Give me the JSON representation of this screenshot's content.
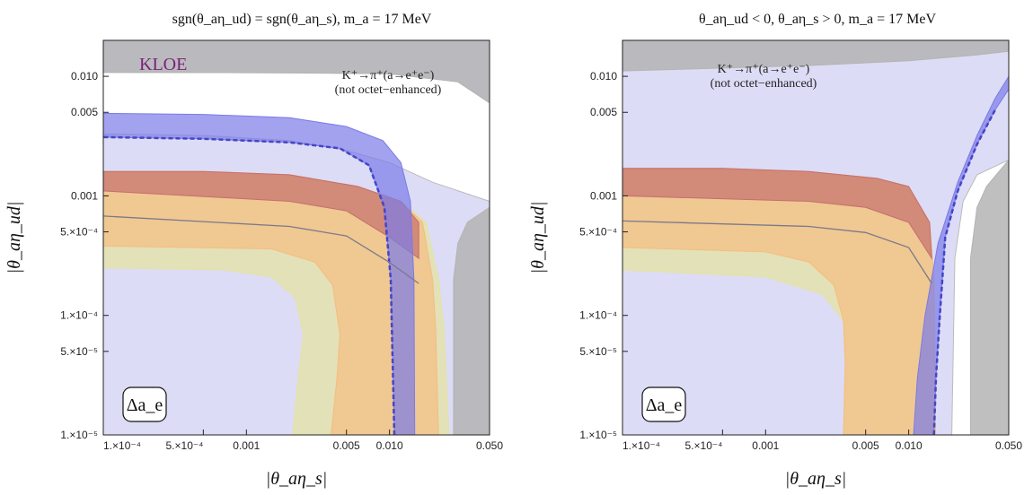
{
  "chart_data": [
    {
      "type": "area",
      "title": "sgn(θ_aη_ud) = sgn(θ_aη_s), m_a = 17 MeV",
      "xlabel": "|θ_aη_s|",
      "ylabel": "|θ_aη_ud|",
      "xscale": "log",
      "yscale": "log",
      "xlim": [
        0.0001,
        0.05
      ],
      "ylim": [
        1e-05,
        0.02
      ],
      "grid": false,
      "x_ticks": [
        {
          "value": 0.0001,
          "label": "1.×10⁻⁴"
        },
        {
          "value": 0.0005,
          "label": "5.×10⁻⁴"
        },
        {
          "value": 0.001,
          "label": "0.001"
        },
        {
          "value": 0.005,
          "label": "0.005"
        },
        {
          "value": 0.01,
          "label": "0.010"
        },
        {
          "value": 0.05,
          "label": "0.050"
        }
      ],
      "y_ticks": [
        {
          "value": 1e-05,
          "label": "1.×10⁻⁵"
        },
        {
          "value": 5e-05,
          "label": "5.×10⁻⁵"
        },
        {
          "value": 0.0001,
          "label": "1.×10⁻⁴"
        },
        {
          "value": 0.0005,
          "label": "5.×10⁻⁴"
        },
        {
          "value": 0.001,
          "label": "0.001"
        },
        {
          "value": 0.005,
          "label": "0.005"
        },
        {
          "value": 0.01,
          "label": "0.010"
        }
      ],
      "annotations": {
        "kloe": "KLOE",
        "kaon_line1": "K⁺→π⁺(a→e⁺e⁻)",
        "kaon_line2": "(not octet−enhanced)",
        "box_label": "Δa_e"
      },
      "bands": [
        {
          "id": "background",
          "color": "#dcdcf6",
          "points": []
        },
        {
          "id": "white",
          "color": "#ffffff",
          "points": [
            [
              0.0001,
              0.0033
            ],
            [
              0.0005,
              0.0032
            ],
            [
              0.002,
              0.0029
            ],
            [
              0.005,
              0.0024
            ],
            [
              0.01,
              0.0019
            ],
            [
              0.02,
              0.0013
            ],
            [
              0.05,
              0.0009
            ],
            [
              0.05,
              0.006
            ],
            [
              0.03,
              0.009
            ],
            [
              0.01,
              0.0105
            ],
            [
              0.002,
              0.0107
            ],
            [
              0.0001,
              0.0108
            ]
          ]
        },
        {
          "id": "gray-top",
          "color": "#b4b4b4",
          "points": [
            [
              0.0001,
              0.02
            ],
            [
              0.05,
              0.02
            ],
            [
              0.05,
              0.006
            ],
            [
              0.03,
              0.009
            ],
            [
              0.01,
              0.0105
            ],
            [
              0.002,
              0.0107
            ],
            [
              0.0001,
              0.0108
            ]
          ]
        },
        {
          "id": "gray-right",
          "color": "#b4b4b4",
          "points": [
            [
              0.028,
              1e-05
            ],
            [
              0.028,
              0.0002
            ],
            [
              0.03,
              0.0004
            ],
            [
              0.035,
              0.0006
            ],
            [
              0.05,
              0.0008
            ],
            [
              0.05,
              1e-05
            ]
          ]
        },
        {
          "id": "yellow",
          "color": "#e6e39e",
          "points": [
            [
              0.0001,
              0.0016
            ],
            [
              0.0005,
              0.0016
            ],
            [
              0.002,
              0.0015
            ],
            [
              0.006,
              0.0012
            ],
            [
              0.012,
              0.0009
            ],
            [
              0.018,
              0.0006
            ],
            [
              0.022,
              0.0002
            ],
            [
              0.024,
              8e-05
            ],
            [
              0.026,
              1e-05
            ],
            [
              0.0021,
              1e-05
            ],
            [
              0.0023,
              3e-05
            ],
            [
              0.0025,
              7e-05
            ],
            [
              0.0022,
              0.00014
            ],
            [
              0.0015,
              0.00021
            ],
            [
              0.0007,
              0.00024
            ],
            [
              0.0001,
              0.00025
            ]
          ]
        },
        {
          "id": "orange",
          "color": "#f5bd80",
          "points": [
            [
              0.0001,
              0.0016
            ],
            [
              0.0005,
              0.0016
            ],
            [
              0.002,
              0.0015
            ],
            [
              0.006,
              0.0012
            ],
            [
              0.012,
              0.0009
            ],
            [
              0.017,
              0.0006
            ],
            [
              0.02,
              0.0002
            ],
            [
              0.021,
              8e-05
            ],
            [
              0.022,
              1e-05
            ],
            [
              0.0039,
              1e-05
            ],
            [
              0.0043,
              3e-05
            ],
            [
              0.0045,
              7e-05
            ],
            [
              0.004,
              0.00018
            ],
            [
              0.003,
              0.00028
            ],
            [
              0.0015,
              0.00036
            ],
            [
              0.0001,
              0.00038
            ]
          ]
        },
        {
          "id": "red",
          "color": "#c46f6f",
          "points": [
            [
              0.0001,
              0.0016
            ],
            [
              0.0005,
              0.0016
            ],
            [
              0.002,
              0.0015
            ],
            [
              0.006,
              0.0012
            ],
            [
              0.012,
              0.0009
            ],
            [
              0.016,
              0.0006
            ],
            [
              0.016,
              0.0003
            ],
            [
              0.01,
              0.00045
            ],
            [
              0.005,
              0.00075
            ],
            [
              0.002,
              0.0009
            ],
            [
              0.0001,
              0.0011
            ]
          ]
        },
        {
          "id": "blue",
          "color": "#7a7ae8",
          "points": [
            [
              0.0001,
              0.0049
            ],
            [
              0.0005,
              0.0048
            ],
            [
              0.002,
              0.0045
            ],
            [
              0.005,
              0.0038
            ],
            [
              0.009,
              0.0029
            ],
            [
              0.012,
              0.0019
            ],
            [
              0.014,
              0.0009
            ],
            [
              0.0148,
              0.0002
            ],
            [
              0.015,
              1e-05
            ],
            [
              0.0108,
              1e-05
            ],
            [
              0.0102,
              0.0002
            ],
            [
              0.0092,
              0.0008
            ],
            [
              0.0072,
              0.0018
            ],
            [
              0.0045,
              0.0025
            ],
            [
              0.002,
              0.0028
            ],
            [
              0.0005,
              0.003
            ],
            [
              0.0001,
              0.0031
            ]
          ]
        }
      ]
    },
    {
      "type": "area",
      "title": "θ_aη_ud < 0, θ_aη_s > 0, m_a = 17 MeV",
      "xlabel": "|θ_aη_s|",
      "ylabel": "|θ_aη_ud|",
      "xscale": "log",
      "yscale": "log",
      "xlim": [
        0.0001,
        0.05
      ],
      "ylim": [
        1e-05,
        0.02
      ],
      "grid": false,
      "x_ticks": [
        {
          "value": 0.0001,
          "label": "1.×10⁻⁴"
        },
        {
          "value": 0.0005,
          "label": "5.×10⁻⁴"
        },
        {
          "value": 0.001,
          "label": "0.001"
        },
        {
          "value": 0.005,
          "label": "0.005"
        },
        {
          "value": 0.01,
          "label": "0.010"
        },
        {
          "value": 0.05,
          "label": "0.050"
        }
      ],
      "y_ticks": [
        {
          "value": 1e-05,
          "label": "1.×10⁻⁵"
        },
        {
          "value": 5e-05,
          "label": "5.×10⁻⁵"
        },
        {
          "value": 0.0001,
          "label": "1.×10⁻⁴"
        },
        {
          "value": 0.0005,
          "label": "5.×10⁻⁴"
        },
        {
          "value": 0.001,
          "label": "0.001"
        },
        {
          "value": 0.005,
          "label": "0.005"
        },
        {
          "value": 0.01,
          "label": "0.010"
        }
      ],
      "annotations": {
        "kloe": "",
        "kaon_line1": "K⁺→π⁺(a→e⁺e⁻)",
        "kaon_line2": "(not octet−enhanced)",
        "box_label": "Δa_e"
      },
      "bands": [
        {
          "id": "background",
          "color": "#dcdcf6",
          "points": []
        },
        {
          "id": "gray-right",
          "color": "#b4b4b4",
          "points": [
            [
              0.027,
              1e-05
            ],
            [
              0.027,
              0.0003
            ],
            [
              0.03,
              0.0008
            ],
            [
              0.035,
              0.0012
            ],
            [
              0.05,
              0.002
            ],
            [
              0.05,
              1e-05
            ]
          ]
        },
        {
          "id": "white",
          "color": "#ffffff",
          "points": [
            [
              0.02,
              1e-05
            ],
            [
              0.021,
              0.0003
            ],
            [
              0.024,
              0.0009
            ],
            [
              0.03,
              0.0015
            ],
            [
              0.05,
              0.002
            ],
            [
              0.05,
              1e-05
            ]
          ]
        },
        {
          "id": "gray-right2",
          "color": "#b4b4b4",
          "points": [
            [
              0.027,
              1e-05
            ],
            [
              0.027,
              0.0003
            ],
            [
              0.03,
              0.0008
            ],
            [
              0.035,
              0.0012
            ],
            [
              0.05,
              0.002
            ],
            [
              0.05,
              1e-05
            ]
          ]
        },
        {
          "id": "gray-top",
          "color": "#b4b4b4",
          "points": [
            [
              0.0001,
              0.02
            ],
            [
              0.05,
              0.02
            ],
            [
              0.05,
              0.0162
            ],
            [
              0.03,
              0.0151
            ],
            [
              0.01,
              0.0135
            ],
            [
              0.002,
              0.0123
            ],
            [
              0.0001,
              0.0111
            ]
          ]
        },
        {
          "id": "yellow",
          "color": "#e6e39e",
          "points": [
            [
              0.0001,
              0.0017
            ],
            [
              0.0005,
              0.0017
            ],
            [
              0.002,
              0.0016
            ],
            [
              0.006,
              0.0014
            ],
            [
              0.01,
              0.0012
            ],
            [
              0.014,
              0.0006
            ],
            [
              0.015,
              0.0002
            ],
            [
              0.0154,
              1e-05
            ],
            [
              0.0035,
              1e-05
            ],
            [
              0.0036,
              4e-05
            ],
            [
              0.0035,
              9e-05
            ],
            [
              0.0025,
              0.00015
            ],
            [
              0.001,
              0.00021
            ],
            [
              0.0001,
              0.00024
            ]
          ]
        },
        {
          "id": "orange",
          "color": "#f5bd80",
          "points": [
            [
              0.0001,
              0.0017
            ],
            [
              0.0005,
              0.0017
            ],
            [
              0.002,
              0.0016
            ],
            [
              0.006,
              0.0014
            ],
            [
              0.01,
              0.0012
            ],
            [
              0.014,
              0.0006
            ],
            [
              0.015,
              0.0002
            ],
            [
              0.0154,
              1e-05
            ],
            [
              0.0035,
              1e-05
            ],
            [
              0.0036,
              4e-05
            ],
            [
              0.0035,
              9e-05
            ],
            [
              0.003,
              0.00018
            ],
            [
              0.002,
              0.00028
            ],
            [
              0.001,
              0.00034
            ],
            [
              0.0001,
              0.00037
            ]
          ]
        },
        {
          "id": "red",
          "color": "#c46f6f",
          "points": [
            [
              0.0001,
              0.0017
            ],
            [
              0.0005,
              0.0017
            ],
            [
              0.002,
              0.0016
            ],
            [
              0.006,
              0.0014
            ],
            [
              0.01,
              0.0012
            ],
            [
              0.014,
              0.0006
            ],
            [
              0.0145,
              0.0003
            ],
            [
              0.01,
              0.0006
            ],
            [
              0.005,
              0.0008
            ],
            [
              0.002,
              0.0009
            ],
            [
              0.0001,
              0.001
            ]
          ]
        },
        {
          "id": "blue",
          "color": "#7a7ae8",
          "points": [
            [
              0.0108,
              1e-05
            ],
            [
              0.0115,
              3e-05
            ],
            [
              0.013,
              0.0001
            ],
            [
              0.016,
              0.0004
            ],
            [
              0.022,
              0.0013
            ],
            [
              0.03,
              0.0032
            ],
            [
              0.04,
              0.0065
            ],
            [
              0.05,
              0.01
            ],
            [
              0.05,
              0.0078
            ],
            [
              0.04,
              0.0052
            ],
            [
              0.03,
              0.0027
            ],
            [
              0.022,
              0.0011
            ],
            [
              0.018,
              0.00045
            ],
            [
              0.0165,
              0.0001
            ],
            [
              0.0155,
              3e-05
            ],
            [
              0.015,
              1e-05
            ]
          ]
        }
      ]
    }
  ]
}
